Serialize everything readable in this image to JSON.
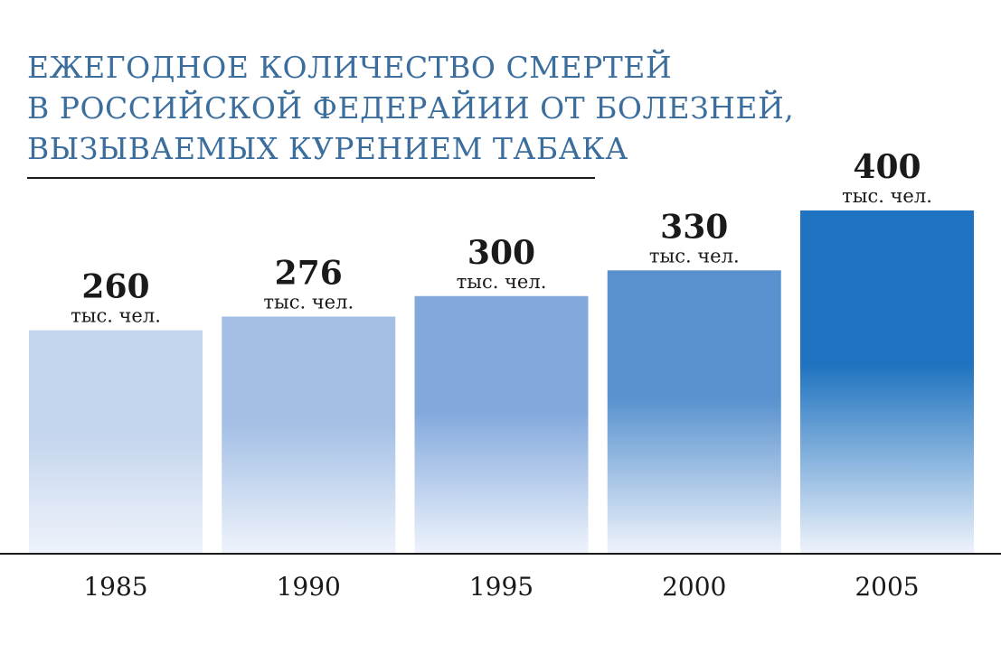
{
  "chart_data": {
    "type": "bar",
    "title_lines": [
      "ЕЖЕГОДНОЕ КОЛИЧЕСТВО СМЕРТЕЙ",
      "В РОССИЙСКОЙ ФЕДЕРАЙИИ ОТ БОЛЕЗНЕЙ,",
      "ВЫЗЫВАЕМЫХ КУРЕНИЕМ ТАБАКА"
    ],
    "categories": [
      "1985",
      "1990",
      "1995",
      "2000",
      "2005"
    ],
    "values": [
      260,
      276,
      300,
      330,
      400
    ],
    "value_labels": [
      "260",
      "276",
      "300",
      "330",
      "400"
    ],
    "unit_label": "тыс. чел.",
    "bar_colors": [
      "#c3d4ed",
      "#a3bfe5",
      "#82a9dc",
      "#5891ce",
      "#1f73c0"
    ],
    "grid": false
  }
}
